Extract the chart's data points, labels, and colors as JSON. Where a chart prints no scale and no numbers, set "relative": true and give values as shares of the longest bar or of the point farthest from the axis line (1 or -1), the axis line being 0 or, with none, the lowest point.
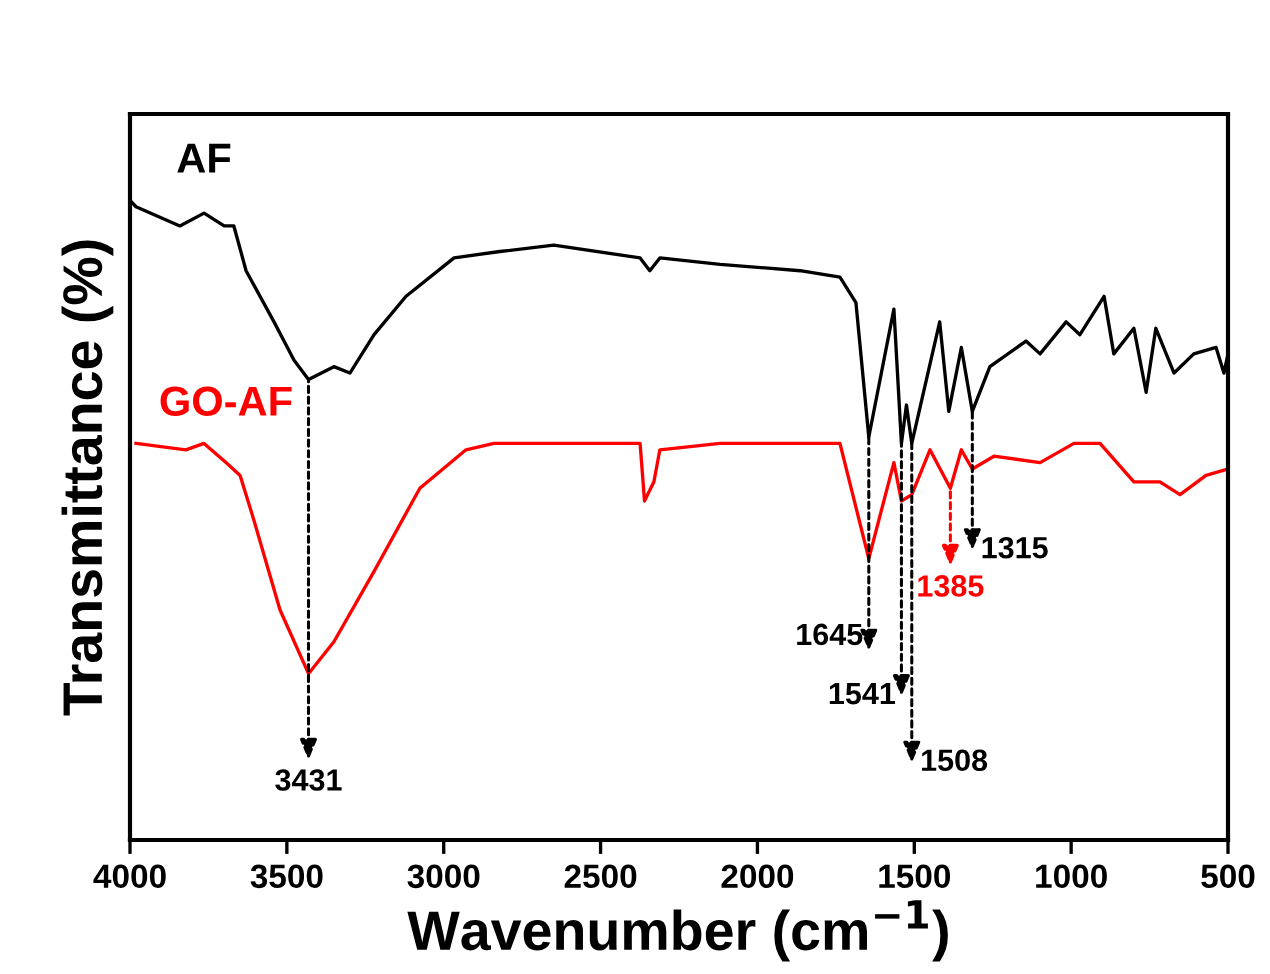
{
  "chart_data": {
    "type": "line",
    "relative": true,
    "xlabel": "Wavenumber (cm$^{−1}$)",
    "ylabel": "Transmittance (%)",
    "xlim": [
      4000,
      500
    ],
    "xticks": [
      4000,
      3500,
      3000,
      2500,
      2000,
      1500,
      1000,
      500
    ],
    "grid": false,
    "legend": false,
    "marker": "none",
    "line_style": "solid",
    "series": [
      {
        "name": "AF",
        "color": "#000000",
        "x": [
          4000,
          3981,
          3841,
          3764,
          3700,
          3669,
          3630,
          3541,
          3477,
          3431,
          3350,
          3299,
          3222,
          3120,
          2967,
          2821,
          2649,
          2374,
          2343,
          2311,
          2119,
          1864,
          1737,
          1686,
          1645,
          1565,
          1541,
          1525,
          1508,
          1419,
          1390,
          1350,
          1315,
          1259,
          1144,
          1099,
          1016,
          972,
          895,
          864,
          800,
          761,
          730,
          672,
          609,
          538,
          513,
          500
        ],
        "values": [
          1.0,
          0.99,
          0.96,
          0.98,
          0.96,
          0.96,
          0.89,
          0.81,
          0.75,
          0.72,
          0.74,
          0.73,
          0.79,
          0.85,
          0.91,
          0.92,
          0.93,
          0.91,
          0.89,
          0.91,
          0.9,
          0.89,
          0.88,
          0.84,
          0.63,
          0.83,
          0.62,
          0.68,
          0.62,
          0.81,
          0.67,
          0.77,
          0.67,
          0.74,
          0.78,
          0.76,
          0.81,
          0.79,
          0.85,
          0.76,
          0.8,
          0.7,
          0.8,
          0.73,
          0.76,
          0.77,
          0.73,
          0.76
        ]
      },
      {
        "name": "GO-AF",
        "color": "#ff0000",
        "x": [
          3981,
          3822,
          3764,
          3694,
          3649,
          3605,
          3522,
          3431,
          3350,
          3222,
          3076,
          2929,
          2840,
          2374,
          2360,
          2330,
          2311,
          2119,
          1864,
          1737,
          1645,
          1565,
          1541,
          1508,
          1450,
          1385,
          1350,
          1315,
          1246,
          1099,
          991,
          908,
          800,
          717,
          653,
          570,
          500
        ],
        "values": [
          0.62,
          0.61,
          0.62,
          0.59,
          0.57,
          0.5,
          0.36,
          0.26,
          0.31,
          0.42,
          0.55,
          0.61,
          0.62,
          0.62,
          0.53,
          0.56,
          0.61,
          0.62,
          0.62,
          0.62,
          0.44,
          0.59,
          0.53,
          0.54,
          0.61,
          0.55,
          0.61,
          0.58,
          0.6,
          0.59,
          0.62,
          0.62,
          0.56,
          0.56,
          0.54,
          0.57,
          0.58
        ]
      }
    ],
    "annotations": [
      {
        "text": "3431",
        "x": 3431,
        "y": 0.72
      },
      {
        "text": "1645",
        "x": 1645,
        "y": 0.63
      },
      {
        "text": "1541",
        "x": 1541,
        "y": 0.62
      },
      {
        "text": "1508",
        "x": 1508,
        "y": 0.62
      },
      {
        "text": "1385",
        "x": 1385,
        "y": 0.55
      },
      {
        "text": "1315",
        "x": 1315,
        "y": 0.67
      }
    ]
  }
}
